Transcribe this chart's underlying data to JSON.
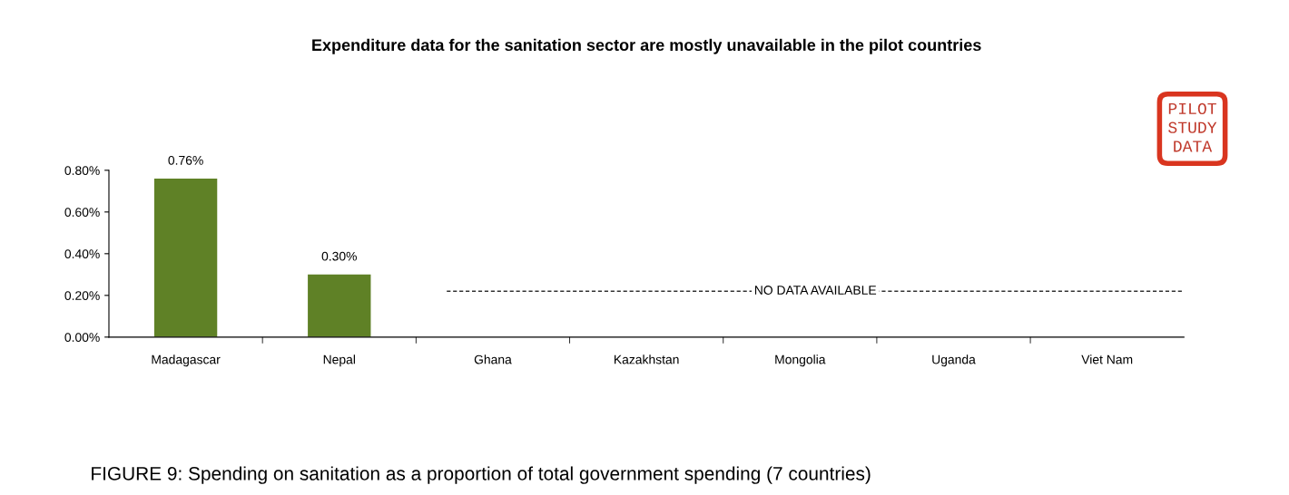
{
  "chart_data": {
    "type": "bar",
    "title": "Expenditure data for the sanitation sector are mostly unavailable in the pilot countries",
    "categories": [
      "Madagascar",
      "Nepal",
      "Ghana",
      "Kazakhstan",
      "Mongolia",
      "Uganda",
      "Viet Nam"
    ],
    "values": [
      0.76,
      0.3,
      null,
      null,
      null,
      null,
      null
    ],
    "value_labels": [
      "0.76%",
      "0.30%",
      null,
      null,
      null,
      null,
      null
    ],
    "color": "#5f8126",
    "ylim": [
      0,
      0.8
    ],
    "yticks": [
      {
        "value": 0,
        "label": "0.00%"
      },
      {
        "value": 0.2,
        "label": "0.20%"
      },
      {
        "value": 0.4,
        "label": "0.40%"
      },
      {
        "value": 0.6,
        "label": "0.60%"
      },
      {
        "value": 0.8,
        "label": "0.80%"
      }
    ],
    "grid": false,
    "legend": false,
    "ref_lines": [
      {
        "axis": "y",
        "value": 0.22,
        "label": "NO DATA AVAILABLE",
        "line_style": "dashed",
        "color": "#333333"
      }
    ],
    "annotations": [
      "PILOT STUDY DATA",
      "FIGURE 9: Spending on sanitation as a proportion of total government spending (7 countries)"
    ]
  }
}
